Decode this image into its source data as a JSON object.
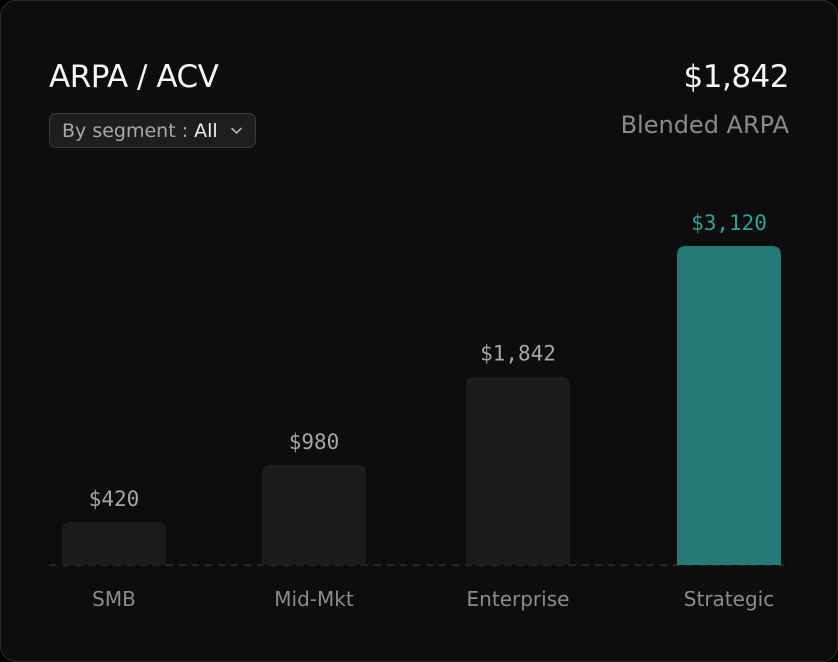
{
  "header": {
    "title": "ARPA / ACV",
    "filter_prefix": "By segment :",
    "filter_value": "All",
    "kpi_value": "$1,842",
    "kpi_label": "Blended ARPA"
  },
  "colors": {
    "bar": "#1c1c1c",
    "bar_highlight": "#237a78",
    "label": "#a6a6a6",
    "label_highlight": "#2aa39e",
    "category": "#8c8c8c",
    "baseline": "#3a3a3a"
  },
  "icons": {
    "filter_chevron": "chevron-down-icon"
  },
  "chart_data": {
    "type": "bar",
    "categories": [
      "SMB",
      "Mid-Mkt",
      "Enterprise",
      "Strategic"
    ],
    "values": [
      420,
      980,
      1842,
      3120
    ],
    "value_labels": [
      "$420",
      "$980",
      "$1,842",
      "$3,120"
    ],
    "highlight_index": 3,
    "title": "ARPA / ACV",
    "ylim": [
      0,
      3120
    ],
    "grid": false
  }
}
